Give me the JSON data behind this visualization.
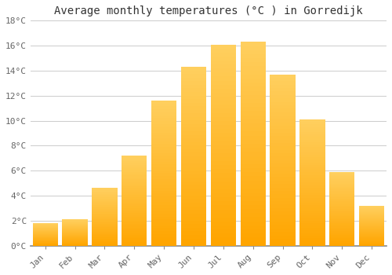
{
  "months": [
    "Jan",
    "Feb",
    "Mar",
    "Apr",
    "May",
    "Jun",
    "Jul",
    "Aug",
    "Sep",
    "Oct",
    "Nov",
    "Dec"
  ],
  "temperatures": [
    1.8,
    2.1,
    4.6,
    7.2,
    11.6,
    14.3,
    16.1,
    16.3,
    13.7,
    10.1,
    5.9,
    3.2
  ],
  "bar_color_light": "#FFD060",
  "bar_color_dark": "#FFA500",
  "title": "Average monthly temperatures (°C ) in Gorredijk",
  "ylim": [
    0,
    18
  ],
  "yticks": [
    0,
    2,
    4,
    6,
    8,
    10,
    12,
    14,
    16,
    18
  ],
  "ytick_labels": [
    "0°C",
    "2°C",
    "4°C",
    "6°C",
    "8°C",
    "10°C",
    "12°C",
    "14°C",
    "16°C",
    "18°C"
  ],
  "bg_color": "#FFFFFF",
  "grid_color": "#CCCCCC",
  "title_fontsize": 10,
  "tick_fontsize": 8,
  "font_family": "monospace",
  "bar_width": 0.85
}
